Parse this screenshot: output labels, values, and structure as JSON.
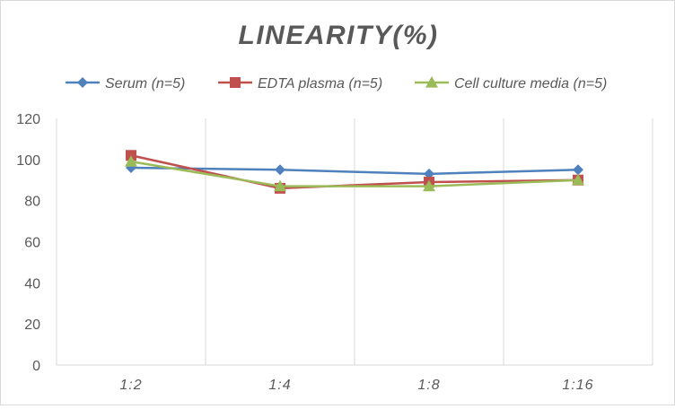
{
  "chart_data": {
    "type": "line",
    "title": "LINEARITY(%)",
    "xlabel": "",
    "ylabel": "",
    "categories": [
      "1:2",
      "1:4",
      "1:8",
      "1:16"
    ],
    "ylim": [
      0,
      120
    ],
    "yticks": [
      0,
      20,
      40,
      60,
      80,
      100,
      120
    ],
    "grid": "vertical",
    "legend_position": "top",
    "series": [
      {
        "name": "Serum (n=5)",
        "values": [
          96,
          95,
          93,
          95
        ],
        "color": "#4f81bd",
        "marker": "diamond"
      },
      {
        "name": "EDTA plasma (n=5)",
        "values": [
          102,
          86,
          89,
          90
        ],
        "color": "#c0504d",
        "marker": "square"
      },
      {
        "name": "Cell culture media (n=5)",
        "values": [
          99,
          87,
          87,
          90
        ],
        "color": "#9bbb59",
        "marker": "triangle"
      }
    ]
  }
}
